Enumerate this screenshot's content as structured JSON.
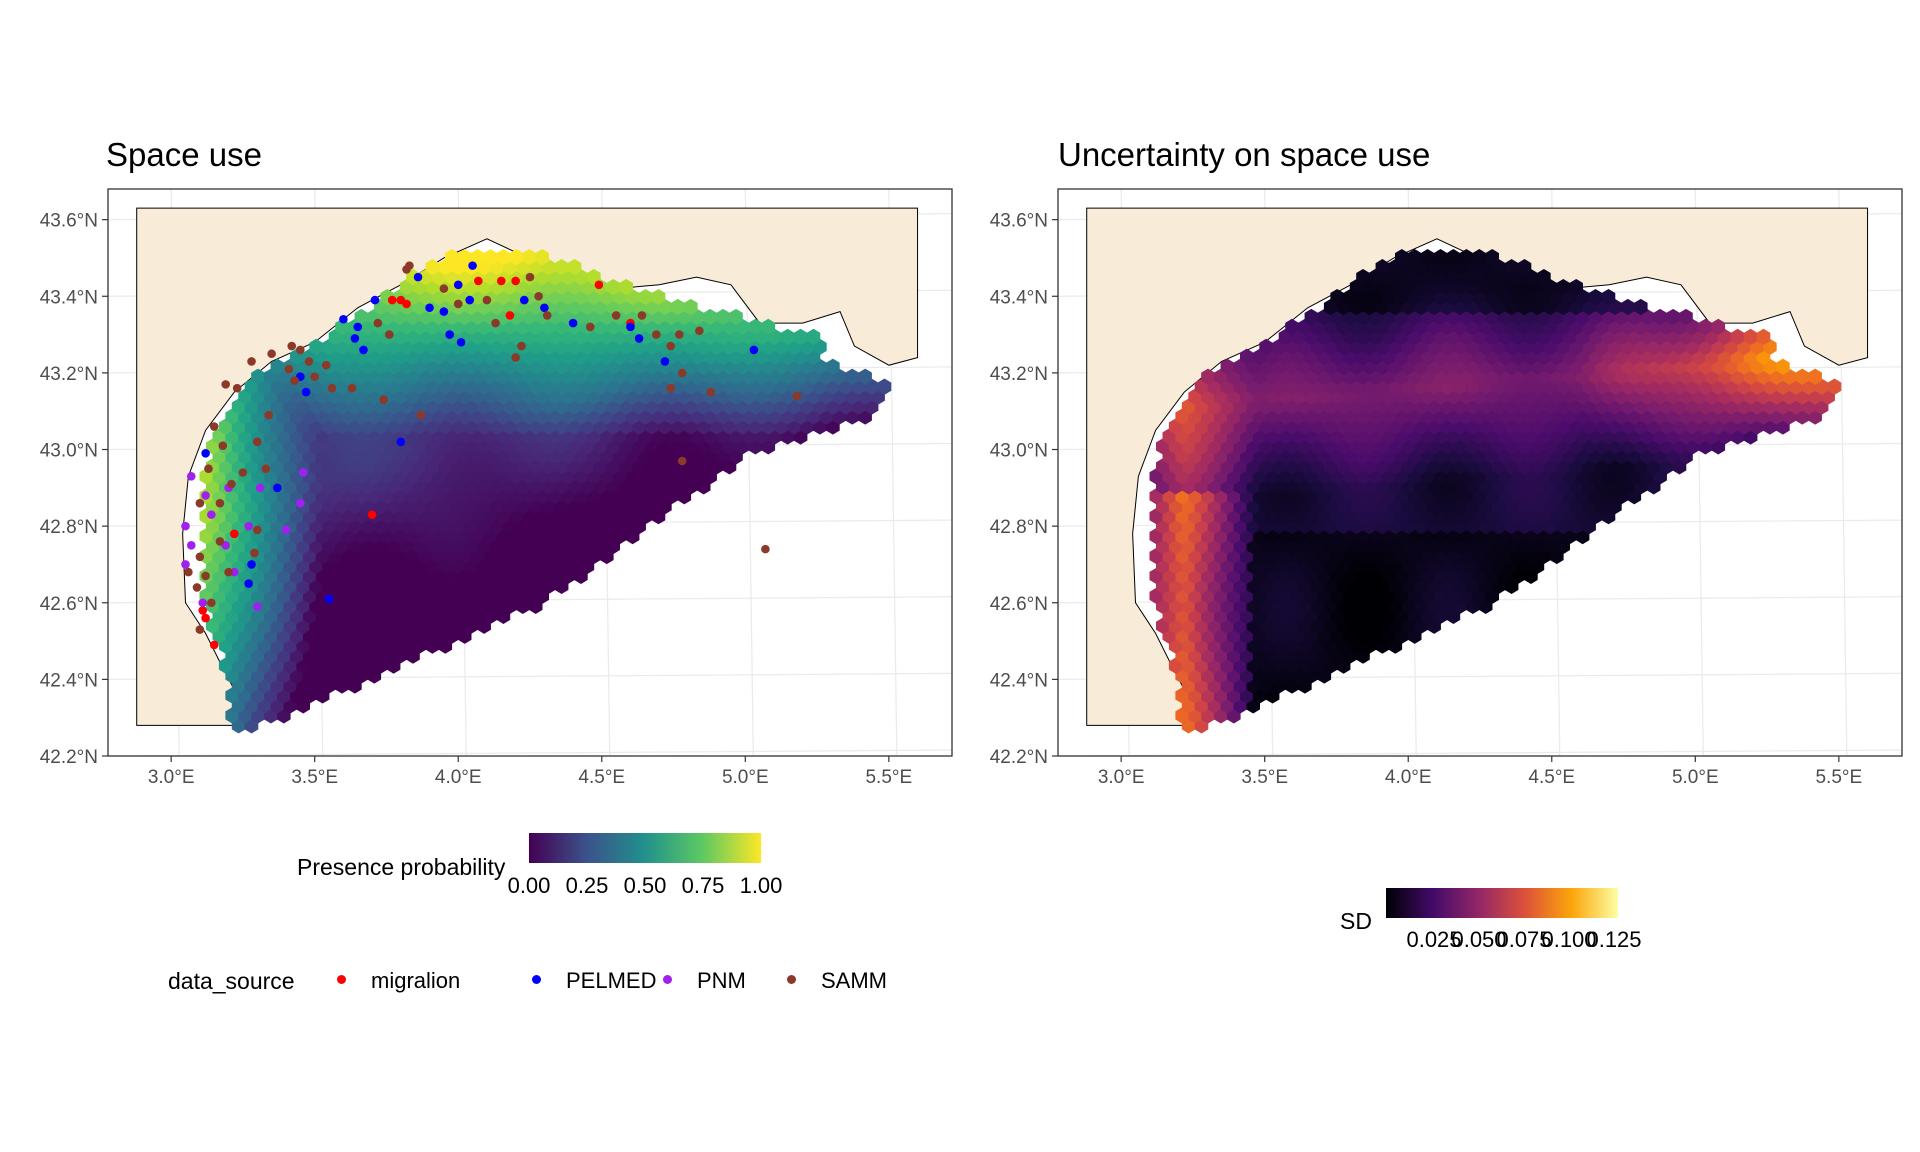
{
  "colors": {
    "land": "#f8ebd8",
    "panel_border": "#333333",
    "grid": "#ebebeb",
    "coast": "#000000"
  },
  "chart_data": [
    {
      "type": "heatmap",
      "title": "Space use",
      "x_ticks": [
        "3.0°E",
        "3.5°E",
        "4.0°E",
        "4.5°E",
        "5.0°E",
        "5.5°E"
      ],
      "y_ticks": [
        "43.6°N",
        "43.4°N",
        "43.2°N",
        "43.0°N",
        "42.8°N",
        "42.6°N",
        "42.4°N",
        "42.2°N"
      ],
      "xlim": [
        2.78,
        5.72
      ],
      "ylim": [
        42.2,
        43.68
      ],
      "fill_legend": {
        "title": "Presence probability",
        "ticks": [
          "0.00",
          "0.25",
          "0.50",
          "0.75",
          "1.00"
        ],
        "palette": "viridis"
      },
      "point_legend": {
        "title": "data_source",
        "entries": [
          {
            "label": "migralion",
            "color": "#ff0000"
          },
          {
            "label": "PELMED",
            "color": "#0000ff"
          },
          {
            "label": "PNM",
            "color": "#a020f0"
          },
          {
            "label": "SAMM",
            "color": "#8b3a2a"
          }
        ]
      },
      "points": [
        {
          "source": "migralion",
          "x": 4.15,
          "y": 43.44
        },
        {
          "source": "migralion",
          "x": 4.2,
          "y": 43.44
        },
        {
          "source": "migralion",
          "x": 4.07,
          "y": 43.44
        },
        {
          "source": "migralion",
          "x": 4.18,
          "y": 43.35
        },
        {
          "source": "migralion",
          "x": 3.8,
          "y": 43.39
        },
        {
          "source": "migralion",
          "x": 3.77,
          "y": 43.39
        },
        {
          "source": "migralion",
          "x": 3.82,
          "y": 43.38
        },
        {
          "source": "migralion",
          "x": 4.6,
          "y": 43.33
        },
        {
          "source": "migralion",
          "x": 4.49,
          "y": 43.43
        },
        {
          "source": "migralion",
          "x": 3.11,
          "y": 42.58
        },
        {
          "source": "migralion",
          "x": 3.12,
          "y": 42.56
        },
        {
          "source": "migralion",
          "x": 3.7,
          "y": 42.83
        },
        {
          "source": "migralion",
          "x": 3.15,
          "y": 42.49
        },
        {
          "source": "migralion",
          "x": 3.22,
          "y": 42.78
        },
        {
          "source": "PELMED",
          "x": 4.05,
          "y": 43.48
        },
        {
          "source": "PELMED",
          "x": 4.0,
          "y": 43.43
        },
        {
          "source": "PELMED",
          "x": 3.86,
          "y": 43.45
        },
        {
          "source": "PELMED",
          "x": 3.71,
          "y": 43.39
        },
        {
          "source": "PELMED",
          "x": 3.65,
          "y": 43.32
        },
        {
          "source": "PELMED",
          "x": 3.64,
          "y": 43.29
        },
        {
          "source": "PELMED",
          "x": 3.67,
          "y": 43.26
        },
        {
          "source": "PELMED",
          "x": 3.6,
          "y": 43.34
        },
        {
          "source": "PELMED",
          "x": 3.9,
          "y": 43.37
        },
        {
          "source": "PELMED",
          "x": 3.95,
          "y": 43.36
        },
        {
          "source": "PELMED",
          "x": 4.04,
          "y": 43.39
        },
        {
          "source": "PELMED",
          "x": 4.23,
          "y": 43.39
        },
        {
          "source": "PELMED",
          "x": 4.3,
          "y": 43.37
        },
        {
          "source": "PELMED",
          "x": 3.97,
          "y": 43.3
        },
        {
          "source": "PELMED",
          "x": 4.01,
          "y": 43.28
        },
        {
          "source": "PELMED",
          "x": 3.47,
          "y": 43.15
        },
        {
          "source": "PELMED",
          "x": 3.45,
          "y": 43.19
        },
        {
          "source": "PELMED",
          "x": 4.4,
          "y": 43.33
        },
        {
          "source": "PELMED",
          "x": 4.6,
          "y": 43.32
        },
        {
          "source": "PELMED",
          "x": 4.63,
          "y": 43.29
        },
        {
          "source": "PELMED",
          "x": 4.72,
          "y": 43.23
        },
        {
          "source": "PELMED",
          "x": 5.03,
          "y": 43.26
        },
        {
          "source": "PELMED",
          "x": 3.8,
          "y": 43.02
        },
        {
          "source": "PELMED",
          "x": 3.55,
          "y": 42.61
        },
        {
          "source": "PELMED",
          "x": 3.28,
          "y": 42.7
        },
        {
          "source": "PELMED",
          "x": 3.27,
          "y": 42.65
        },
        {
          "source": "PELMED",
          "x": 3.37,
          "y": 42.9
        },
        {
          "source": "PELMED",
          "x": 3.12,
          "y": 42.99
        },
        {
          "source": "PNM",
          "x": 3.07,
          "y": 42.93
        },
        {
          "source": "PNM",
          "x": 3.05,
          "y": 42.8
        },
        {
          "source": "PNM",
          "x": 3.07,
          "y": 42.75
        },
        {
          "source": "PNM",
          "x": 3.05,
          "y": 42.7
        },
        {
          "source": "PNM",
          "x": 3.12,
          "y": 42.88
        },
        {
          "source": "PNM",
          "x": 3.2,
          "y": 42.9
        },
        {
          "source": "PNM",
          "x": 3.27,
          "y": 42.8
        },
        {
          "source": "PNM",
          "x": 3.31,
          "y": 42.9
        },
        {
          "source": "PNM",
          "x": 3.46,
          "y": 42.94
        },
        {
          "source": "PNM",
          "x": 3.45,
          "y": 42.86
        },
        {
          "source": "PNM",
          "x": 3.4,
          "y": 42.79
        },
        {
          "source": "PNM",
          "x": 3.19,
          "y": 42.75
        },
        {
          "source": "PNM",
          "x": 3.22,
          "y": 42.68
        },
        {
          "source": "PNM",
          "x": 3.3,
          "y": 42.59
        },
        {
          "source": "PNM",
          "x": 3.11,
          "y": 42.6
        },
        {
          "source": "PNM",
          "x": 3.14,
          "y": 42.83
        },
        {
          "source": "SAMM",
          "x": 3.82,
          "y": 43.47
        },
        {
          "source": "SAMM",
          "x": 3.83,
          "y": 43.48
        },
        {
          "source": "SAMM",
          "x": 4.0,
          "y": 43.38
        },
        {
          "source": "SAMM",
          "x": 4.1,
          "y": 43.39
        },
        {
          "source": "SAMM",
          "x": 3.95,
          "y": 43.42
        },
        {
          "source": "SAMM",
          "x": 3.72,
          "y": 43.33
        },
        {
          "source": "SAMM",
          "x": 3.76,
          "y": 43.3
        },
        {
          "source": "SAMM",
          "x": 4.13,
          "y": 43.33
        },
        {
          "source": "SAMM",
          "x": 4.25,
          "y": 43.45
        },
        {
          "source": "SAMM",
          "x": 4.28,
          "y": 43.4
        },
        {
          "source": "SAMM",
          "x": 4.31,
          "y": 43.35
        },
        {
          "source": "SAMM",
          "x": 4.46,
          "y": 43.32
        },
        {
          "source": "SAMM",
          "x": 4.55,
          "y": 43.35
        },
        {
          "source": "SAMM",
          "x": 4.64,
          "y": 43.35
        },
        {
          "source": "SAMM",
          "x": 4.69,
          "y": 43.3
        },
        {
          "source": "SAMM",
          "x": 4.77,
          "y": 43.3
        },
        {
          "source": "SAMM",
          "x": 4.84,
          "y": 43.31
        },
        {
          "source": "SAMM",
          "x": 4.74,
          "y": 43.27
        },
        {
          "source": "SAMM",
          "x": 4.78,
          "y": 43.2
        },
        {
          "source": "SAMM",
          "x": 4.22,
          "y": 43.27
        },
        {
          "source": "SAMM",
          "x": 4.2,
          "y": 43.24
        },
        {
          "source": "SAMM",
          "x": 4.74,
          "y": 43.16
        },
        {
          "source": "SAMM",
          "x": 4.88,
          "y": 43.15
        },
        {
          "source": "SAMM",
          "x": 5.18,
          "y": 43.14
        },
        {
          "source": "SAMM",
          "x": 3.28,
          "y": 43.23
        },
        {
          "source": "SAMM",
          "x": 3.35,
          "y": 43.25
        },
        {
          "source": "SAMM",
          "x": 3.42,
          "y": 43.27
        },
        {
          "source": "SAMM",
          "x": 3.45,
          "y": 43.26
        },
        {
          "source": "SAMM",
          "x": 3.48,
          "y": 43.23
        },
        {
          "source": "SAMM",
          "x": 3.5,
          "y": 43.19
        },
        {
          "source": "SAMM",
          "x": 3.41,
          "y": 43.21
        },
        {
          "source": "SAMM",
          "x": 3.54,
          "y": 43.22
        },
        {
          "source": "SAMM",
          "x": 3.43,
          "y": 43.18
        },
        {
          "source": "SAMM",
          "x": 3.56,
          "y": 43.16
        },
        {
          "source": "SAMM",
          "x": 3.19,
          "y": 43.17
        },
        {
          "source": "SAMM",
          "x": 3.23,
          "y": 43.16
        },
        {
          "source": "SAMM",
          "x": 3.15,
          "y": 43.06
        },
        {
          "source": "SAMM",
          "x": 3.18,
          "y": 43.01
        },
        {
          "source": "SAMM",
          "x": 3.3,
          "y": 43.02
        },
        {
          "source": "SAMM",
          "x": 3.25,
          "y": 42.94
        },
        {
          "source": "SAMM",
          "x": 3.21,
          "y": 42.91
        },
        {
          "source": "SAMM",
          "x": 3.17,
          "y": 42.86
        },
        {
          "source": "SAMM",
          "x": 3.13,
          "y": 42.95
        },
        {
          "source": "SAMM",
          "x": 3.1,
          "y": 42.86
        },
        {
          "source": "SAMM",
          "x": 3.1,
          "y": 42.72
        },
        {
          "source": "SAMM",
          "x": 3.12,
          "y": 42.67
        },
        {
          "source": "SAMM",
          "x": 3.09,
          "y": 42.64
        },
        {
          "source": "SAMM",
          "x": 3.1,
          "y": 42.53
        },
        {
          "source": "SAMM",
          "x": 3.14,
          "y": 42.6
        },
        {
          "source": "SAMM",
          "x": 3.17,
          "y": 42.76
        },
        {
          "source": "SAMM",
          "x": 3.2,
          "y": 42.68
        },
        {
          "source": "SAMM",
          "x": 3.06,
          "y": 42.68
        },
        {
          "source": "SAMM",
          "x": 3.74,
          "y": 43.13
        },
        {
          "source": "SAMM",
          "x": 3.87,
          "y": 43.09
        },
        {
          "source": "SAMM",
          "x": 4.78,
          "y": 42.97
        },
        {
          "source": "SAMM",
          "x": 5.07,
          "y": 42.74
        },
        {
          "source": "SAMM",
          "x": 3.34,
          "y": 43.09
        },
        {
          "source": "SAMM",
          "x": 3.63,
          "y": 43.16
        },
        {
          "source": "SAMM",
          "x": 3.33,
          "y": 42.95
        },
        {
          "source": "SAMM",
          "x": 3.3,
          "y": 42.79
        },
        {
          "source": "SAMM",
          "x": 3.29,
          "y": 42.73
        }
      ]
    },
    {
      "type": "heatmap",
      "title": "Uncertainty on space use",
      "x_ticks": [
        "3.0°E",
        "3.5°E",
        "4.0°E",
        "4.5°E",
        "5.0°E",
        "5.5°E"
      ],
      "y_ticks": [
        "43.6°N",
        "43.4°N",
        "43.2°N",
        "43.0°N",
        "42.8°N",
        "42.6°N",
        "42.4°N",
        "42.2°N"
      ],
      "xlim": [
        2.78,
        5.72
      ],
      "ylim": [
        42.2,
        43.68
      ],
      "fill_legend": {
        "title": "SD",
        "ticks": [
          "0.025",
          "0.050",
          "0.075",
          "0.100",
          "0.125"
        ],
        "palette": "inferno"
      }
    }
  ]
}
